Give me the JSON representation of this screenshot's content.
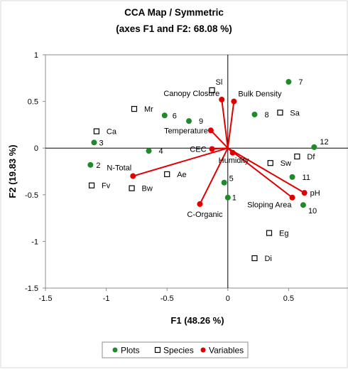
{
  "chart_data": {
    "type": "scatter",
    "title": "CCA Map / Symmetric",
    "subtitle": "(axes F1 and F2: 68.08 %)",
    "xlabel": "F1 (48.26 %)",
    "ylabel": "F2 (19.83 %)",
    "xlim": [
      -1.5,
      1
    ],
    "ylim": [
      -1.5,
      1
    ],
    "xticks": [
      -1.5,
      -1,
      -0.5,
      0,
      0.5
    ],
    "xtick_labels": [
      "-1.5",
      "-1",
      "-0.5",
      "0",
      "0.5"
    ],
    "yticks": [
      -1.5,
      -1,
      -0.5,
      0,
      0.5,
      1
    ],
    "ytick_labels": [
      "-1.5",
      "-1",
      "-0.5",
      "0",
      "0.5",
      "1"
    ],
    "grid": false,
    "legend_position": "bottom",
    "series": [
      {
        "name": "Plots",
        "color": "#1e8a2a",
        "marker": "filled-circle",
        "points": [
          {
            "label": "1",
            "x": 0.0,
            "y": -0.53
          },
          {
            "label": "2",
            "x": -1.13,
            "y": -0.18
          },
          {
            "label": "3",
            "x": -1.1,
            "y": 0.06
          },
          {
            "label": "4",
            "x": -0.65,
            "y": -0.03
          },
          {
            "label": "5",
            "x": -0.03,
            "y": -0.37
          },
          {
            "label": "6",
            "x": -0.52,
            "y": 0.35
          },
          {
            "label": "7",
            "x": 0.5,
            "y": 0.71
          },
          {
            "label": "8",
            "x": 0.22,
            "y": 0.36
          },
          {
            "label": "9",
            "x": -0.32,
            "y": 0.29
          },
          {
            "label": "10",
            "x": 0.62,
            "y": -0.61
          },
          {
            "label": "11",
            "x": 0.53,
            "y": -0.31
          },
          {
            "label": "12",
            "x": 0.71,
            "y": 0.01
          }
        ]
      },
      {
        "name": "Species",
        "color": "#000000",
        "marker": "open-square",
        "points": [
          {
            "label": "Sl",
            "x": -0.13,
            "y": 0.62
          },
          {
            "label": "Mr",
            "x": -0.77,
            "y": 0.42
          },
          {
            "label": "Ca",
            "x": -1.08,
            "y": 0.18
          },
          {
            "label": "Sa",
            "x": 0.43,
            "y": 0.38
          },
          {
            "label": "Df",
            "x": 0.57,
            "y": -0.09
          },
          {
            "label": "Sw",
            "x": 0.35,
            "y": -0.16
          },
          {
            "label": "Ae",
            "x": -0.5,
            "y": -0.28
          },
          {
            "label": "Fv",
            "x": -1.12,
            "y": -0.4
          },
          {
            "label": "Bw",
            "x": -0.79,
            "y": -0.43
          },
          {
            "label": "Eg",
            "x": 0.34,
            "y": -0.91
          },
          {
            "label": "Di",
            "x": 0.22,
            "y": -1.18
          }
        ]
      },
      {
        "name": "Variables",
        "color": "#e00000",
        "marker": "filled-circle",
        "vectors": true,
        "points": [
          {
            "label": "Canopy Closure",
            "x": -0.05,
            "y": 0.52
          },
          {
            "label": "Bulk Density",
            "x": 0.05,
            "y": 0.5
          },
          {
            "label": "Temperature",
            "x": -0.14,
            "y": 0.19
          },
          {
            "label": "CEC",
            "x": -0.13,
            "y": -0.01
          },
          {
            "label": "Humidity",
            "x": 0.04,
            "y": -0.05
          },
          {
            "label": "N-Total",
            "x": -0.78,
            "y": -0.3
          },
          {
            "label": "C-Organic",
            "x": -0.23,
            "y": -0.6
          },
          {
            "label": "pH",
            "x": 0.63,
            "y": -0.48
          },
          {
            "label": "Sloping Area",
            "x": 0.53,
            "y": -0.53
          }
        ]
      }
    ],
    "legend": [
      "Plots",
      "Species",
      "Variables"
    ]
  }
}
